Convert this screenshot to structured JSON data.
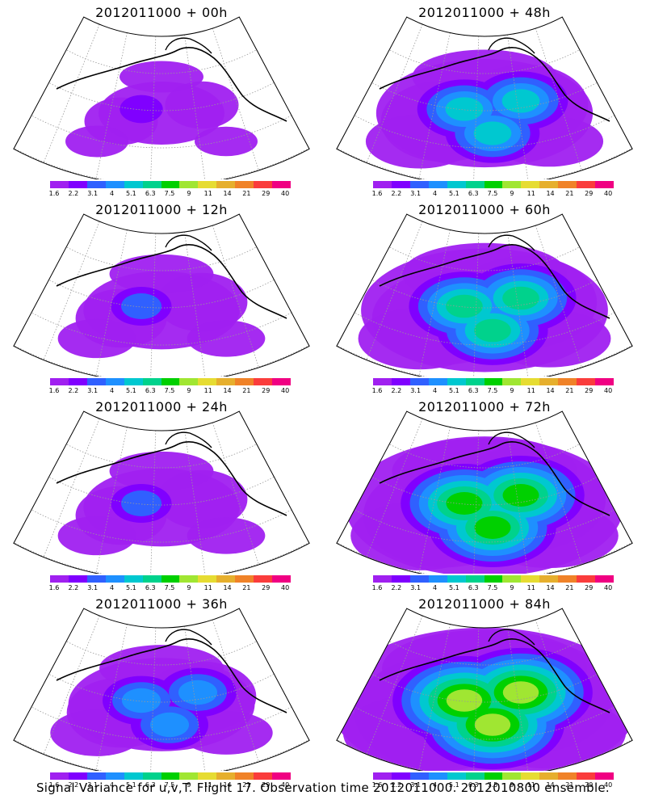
{
  "panels": [
    {
      "title": "2012011000  +  00h",
      "level": 0
    },
    {
      "title": "2012011000  +  48h",
      "level": 3
    },
    {
      "title": "2012011000  +  12h",
      "level": 1
    },
    {
      "title": "2012011000  +  60h",
      "level": 4
    },
    {
      "title": "2012011000  +  24h",
      "level": 1
    },
    {
      "title": "2012011000  +  72h",
      "level": 5
    },
    {
      "title": "2012011000  +  36h",
      "level": 2
    },
    {
      "title": "2012011000  +  84h",
      "level": 6
    }
  ],
  "colorbar": {
    "labels": [
      "1.6",
      "2.2",
      "3.1",
      "4",
      "5.1",
      "6.3",
      "7.5",
      "9",
      "11",
      "14",
      "21",
      "29",
      "40"
    ],
    "colors": [
      "#a020f0",
      "#8000ff",
      "#3060ff",
      "#1e90ff",
      "#00c8d0",
      "#00d28c",
      "#00d000",
      "#a0e632",
      "#e6dc32",
      "#e6af2d",
      "#f08228",
      "#fa3c3c",
      "#f00082"
    ]
  },
  "caption": "Signal Variance for u,v,T. Flight 17. Observation time 2012011000. 2012010800 ensemble."
}
